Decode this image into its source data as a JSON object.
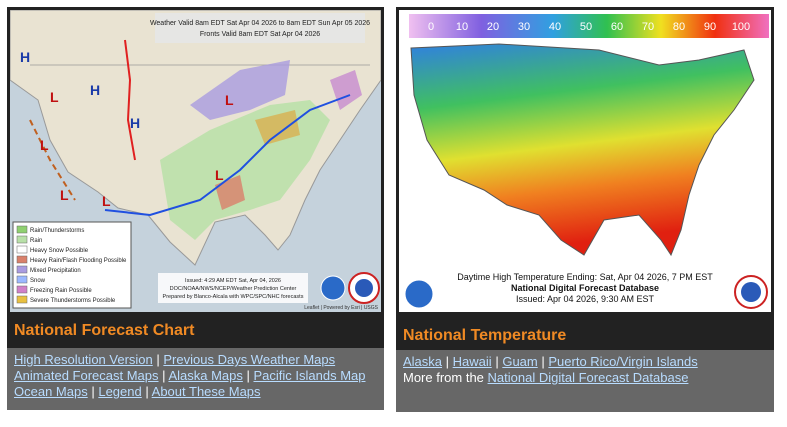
{
  "separator": "|",
  "left": {
    "map": {
      "valid_lines": [
        "Weather Valid 8am EDT Sat Apr 04 2026 to 8am EDT Sun Apr 05 2026",
        "Fronts Valid 8am EDT Sat Apr 04 2026"
      ],
      "pressure_centers": [
        "H",
        "H",
        "H",
        "L",
        "L",
        "L",
        "L",
        "L",
        "L"
      ],
      "legend": [
        "Rain/Thunderstorms",
        "Rain",
        "Heavy Snow Possible",
        "Heavy Rain/Flash Flooding Possible",
        "Mixed Precipitation",
        "Snow",
        "Freezing Rain Possible",
        "Severe Thunderstorms Possible"
      ],
      "issued_lines": [
        "Issued: 4:29 AM EDT  Sat, Apr 04, 2026",
        "DOC/NOAA/NWS/NCEP/Weather Prediction Center",
        "Prepared by Blanco-Alcala with WPC/SPC/NHC forecasts"
      ],
      "credits": "Leaflet | Powered by Esri | USGS"
    },
    "title": "National Forecast Chart",
    "links": [
      [
        "High Resolution Version",
        "Previous Days Weather Maps"
      ],
      [
        "Animated Forecast Maps",
        "Alaska Maps",
        "Pacific Islands Map"
      ],
      [
        "Ocean Maps",
        "Legend",
        "About These Maps"
      ]
    ]
  },
  "right": {
    "map": {
      "scale": [
        0,
        10,
        20,
        30,
        40,
        50,
        60,
        70,
        80,
        90,
        100
      ],
      "caption_lines": [
        "Daytime High Temperature Ending: Sat, Apr 04 2026, 7 PM EST",
        "National Digital Forecast Database",
        "Issued: Apr 04 2026, 9:30 AM EST"
      ]
    },
    "title": "National Temperature",
    "links": [
      [
        "Alaska",
        "Hawaii",
        "Guam",
        "Puerto Rico/Virgin Islands"
      ]
    ],
    "more_text": "More from the",
    "more_link": "National Digital Forecast Database"
  }
}
